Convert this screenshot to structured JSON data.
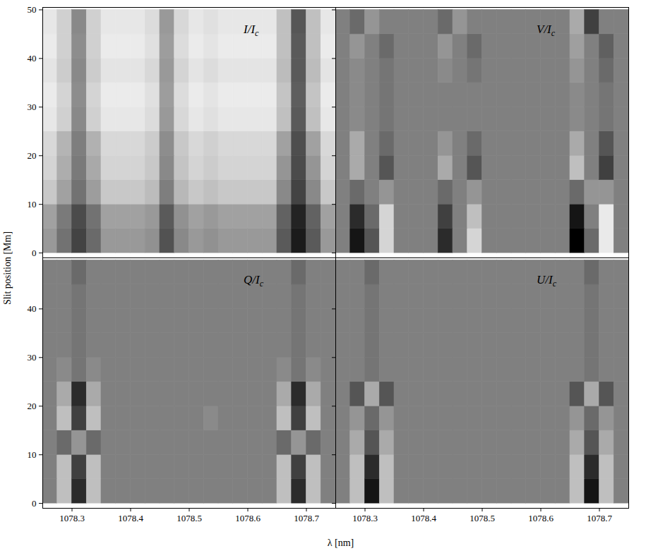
{
  "chart_data": {
    "type": "heatmap",
    "xlabel": "λ  [nm]",
    "ylabel": "Slit position [Mm]",
    "xlim": [
      1078.25,
      1078.75
    ],
    "ylim": [
      -1,
      50.5
    ],
    "xticks": [
      1078.3,
      1078.4,
      1078.5,
      1078.6,
      1078.7
    ],
    "x_bins": [
      1078.25,
      1078.275,
      1078.3,
      1078.325,
      1078.35,
      1078.375,
      1078.4,
      1078.425,
      1078.45,
      1078.475,
      1078.5,
      1078.525,
      1078.55,
      1078.575,
      1078.6,
      1078.625,
      1078.65,
      1078.675,
      1078.7,
      1078.725,
      1078.75
    ],
    "y_bins": [
      0,
      5,
      10,
      15,
      20,
      25,
      30,
      35,
      40,
      45,
      50
    ],
    "panels": [
      {
        "title": "I/Ic",
        "zlim": [
          0.35,
          1.0
        ],
        "yticks": [
          0,
          10,
          20,
          30,
          40,
          50
        ],
        "cells": [
          [
            0.74,
            0.64,
            0.52,
            0.62,
            0.74,
            0.74,
            0.74,
            0.72,
            0.56,
            0.7,
            0.74,
            0.72,
            0.74,
            0.74,
            0.74,
            0.74,
            0.58,
            0.42,
            0.58,
            0.74
          ],
          [
            0.76,
            0.66,
            0.54,
            0.64,
            0.76,
            0.76,
            0.76,
            0.74,
            0.58,
            0.72,
            0.76,
            0.74,
            0.76,
            0.76,
            0.76,
            0.76,
            0.6,
            0.44,
            0.6,
            0.76
          ],
          [
            0.86,
            0.76,
            0.64,
            0.75,
            0.86,
            0.86,
            0.86,
            0.83,
            0.67,
            0.82,
            0.86,
            0.84,
            0.86,
            0.86,
            0.86,
            0.86,
            0.7,
            0.52,
            0.7,
            0.86
          ],
          [
            0.89,
            0.79,
            0.66,
            0.78,
            0.89,
            0.89,
            0.89,
            0.86,
            0.7,
            0.85,
            0.89,
            0.87,
            0.89,
            0.89,
            0.89,
            0.89,
            0.73,
            0.54,
            0.73,
            0.89
          ],
          [
            0.9,
            0.81,
            0.67,
            0.8,
            0.9,
            0.9,
            0.9,
            0.87,
            0.71,
            0.86,
            0.9,
            0.88,
            0.9,
            0.9,
            0.9,
            0.9,
            0.76,
            0.55,
            0.76,
            0.9
          ],
          [
            0.94,
            0.88,
            0.7,
            0.88,
            0.94,
            0.94,
            0.94,
            0.91,
            0.74,
            0.9,
            0.94,
            0.92,
            0.94,
            0.94,
            0.94,
            0.94,
            0.84,
            0.58,
            0.84,
            0.94
          ],
          [
            0.95,
            0.89,
            0.71,
            0.89,
            0.95,
            0.95,
            0.95,
            0.92,
            0.75,
            0.91,
            0.95,
            0.93,
            0.95,
            0.95,
            0.95,
            0.95,
            0.85,
            0.59,
            0.85,
            0.95
          ],
          [
            0.93,
            0.87,
            0.7,
            0.87,
            0.93,
            0.93,
            0.93,
            0.9,
            0.74,
            0.89,
            0.93,
            0.91,
            0.93,
            0.93,
            0.93,
            0.93,
            0.83,
            0.58,
            0.83,
            0.93
          ],
          [
            0.95,
            0.88,
            0.71,
            0.88,
            0.95,
            0.95,
            0.95,
            0.92,
            0.75,
            0.91,
            0.95,
            0.93,
            0.95,
            0.95,
            0.95,
            0.95,
            0.84,
            0.58,
            0.84,
            0.95
          ],
          [
            0.94,
            0.88,
            0.7,
            0.88,
            0.94,
            0.94,
            0.94,
            0.91,
            0.74,
            0.9,
            0.94,
            0.92,
            0.94,
            0.94,
            0.94,
            0.94,
            0.84,
            0.57,
            0.84,
            0.94
          ]
        ]
      },
      {
        "title": "V/Ic",
        "zlim": [
          -0.06,
          0.06
        ],
        "yticks": [
          0,
          10,
          20,
          30,
          40,
          50
        ],
        "cells": [
          [
            0,
            -0.05,
            -0.02,
            0.04,
            0,
            0,
            0,
            -0.04,
            0,
            0.04,
            0,
            0,
            0,
            0,
            0,
            0,
            -0.06,
            -0.01,
            0.05,
            0
          ],
          [
            0,
            -0.04,
            -0.01,
            0.04,
            0,
            0,
            0,
            -0.03,
            0,
            0.03,
            0,
            0,
            0,
            0,
            0,
            0,
            -0.05,
            0,
            0.05,
            0
          ],
          [
            0,
            -0.01,
            0,
            0.01,
            0,
            0,
            0,
            -0.01,
            0,
            0.01,
            0,
            0,
            0,
            0,
            0,
            0,
            -0.01,
            0.01,
            0.01,
            0
          ],
          [
            0,
            0.02,
            0,
            -0.02,
            0,
            0,
            0,
            0.02,
            0,
            -0.02,
            0,
            0,
            0,
            0,
            0,
            0,
            0.03,
            0,
            -0.03,
            0
          ],
          [
            0,
            0.02,
            0,
            -0.01,
            0,
            0,
            0,
            0.01,
            0,
            -0.01,
            0,
            0,
            0,
            0,
            0,
            0,
            0.02,
            0,
            -0.02,
            0
          ],
          [
            0,
            0.005,
            0,
            -0.005,
            0,
            0,
            0,
            0,
            0,
            0,
            0,
            0,
            0,
            0,
            0,
            0,
            0.005,
            0,
            -0.005,
            0
          ],
          [
            0,
            0.005,
            0,
            -0.005,
            0,
            0,
            0,
            0,
            0,
            0,
            0,
            0,
            0,
            0,
            0,
            0,
            0.005,
            0,
            -0.005,
            0
          ],
          [
            0,
            0.005,
            0,
            -0.005,
            0,
            0,
            0,
            0.005,
            0,
            -0.005,
            0,
            0,
            0,
            0,
            0,
            0,
            0.01,
            0,
            -0.01,
            0
          ],
          [
            0,
            0.01,
            0,
            -0.01,
            0,
            0,
            0,
            0.01,
            0,
            -0.01,
            0,
            0,
            0,
            0,
            0,
            0,
            0.015,
            0,
            -0.015,
            0
          ],
          [
            0,
            -0.01,
            0.01,
            0,
            0,
            0,
            0,
            -0.01,
            0.01,
            0,
            0,
            0,
            0,
            0,
            0,
            0,
            0.02,
            -0.03,
            0,
            0
          ]
        ]
      },
      {
        "title": "Q/Ic",
        "zlim": [
          -0.06,
          0.06
        ],
        "yticks": [
          0,
          10,
          20,
          30,
          40
        ],
        "cells": [
          [
            0,
            0.03,
            -0.04,
            0.03,
            0,
            0,
            0,
            0,
            0,
            0,
            0,
            0,
            0,
            0,
            0,
            0,
            0.03,
            -0.04,
            0.03,
            0
          ],
          [
            0,
            0.03,
            -0.03,
            0.03,
            0,
            0,
            0,
            0,
            0,
            0,
            0,
            0,
            0,
            0,
            0,
            0,
            0.03,
            -0.03,
            0.03,
            0
          ],
          [
            0,
            -0.01,
            0.01,
            -0.01,
            0,
            0,
            0,
            0,
            0,
            0,
            0,
            0,
            0,
            0,
            0,
            0,
            -0.01,
            0.01,
            -0.01,
            0
          ],
          [
            0,
            0.03,
            -0.03,
            0.03,
            0,
            0,
            0,
            0,
            0,
            0,
            0,
            0.005,
            0,
            0,
            0,
            0,
            0.03,
            -0.03,
            0.03,
            0
          ],
          [
            0,
            0.02,
            -0.04,
            0.02,
            0,
            0,
            0,
            0,
            0,
            0,
            0,
            0,
            0,
            0,
            0,
            0,
            0.02,
            -0.04,
            0.02,
            0
          ],
          [
            0,
            0.005,
            -0.005,
            0.005,
            0,
            0,
            0,
            0,
            0,
            0,
            0,
            0,
            0,
            0,
            0,
            0,
            0.005,
            -0.005,
            0.005,
            0
          ],
          [
            0,
            0,
            -0.005,
            0,
            0,
            0,
            0,
            0,
            0,
            0,
            0,
            0,
            0,
            0,
            0,
            0,
            0,
            -0.005,
            0,
            0
          ],
          [
            0,
            0,
            -0.005,
            0,
            0,
            0,
            0,
            0,
            0,
            0,
            0,
            0,
            0,
            0,
            0,
            0,
            0,
            -0.005,
            0,
            0
          ],
          [
            0,
            0,
            -0.005,
            0,
            0,
            0,
            0,
            0,
            0,
            0,
            0,
            0,
            0,
            0,
            0,
            0,
            0,
            -0.005,
            0,
            0
          ],
          [
            0,
            0,
            -0.01,
            0,
            0,
            0,
            0,
            0,
            0,
            0,
            0,
            0,
            0,
            0,
            0,
            0,
            0,
            -0.01,
            0,
            0
          ]
        ]
      },
      {
        "title": "U/Ic",
        "zlim": [
          -0.06,
          0.06
        ],
        "yticks": [
          0,
          10,
          20,
          30,
          40
        ],
        "cells": [
          [
            0,
            0.03,
            -0.05,
            0.03,
            0,
            0,
            0,
            0,
            0,
            0,
            0,
            0,
            0,
            0,
            0,
            0,
            0.03,
            -0.05,
            0.03,
            0
          ],
          [
            0,
            0.03,
            -0.04,
            0.03,
            0,
            0,
            0,
            0,
            0,
            0,
            0,
            0,
            0,
            0,
            0,
            0,
            0.03,
            -0.04,
            0.03,
            0
          ],
          [
            0,
            0.02,
            -0.02,
            0.02,
            0,
            0,
            0,
            0,
            0,
            0,
            0,
            0,
            0,
            0,
            0,
            0,
            0.02,
            -0.02,
            0.02,
            0
          ],
          [
            0,
            0.01,
            -0.01,
            0.01,
            0,
            0,
            0,
            0,
            0,
            0,
            0,
            0,
            0,
            0,
            0,
            0,
            0.01,
            -0.01,
            0.01,
            0
          ],
          [
            0,
            -0.02,
            0.02,
            -0.02,
            0,
            0,
            0,
            0,
            0,
            0,
            0,
            0,
            0,
            0,
            0,
            0,
            -0.02,
            0.02,
            -0.02,
            0
          ],
          [
            0,
            0,
            -0.005,
            0,
            0,
            0,
            0,
            0,
            0,
            0,
            0,
            0,
            0,
            0,
            0,
            0,
            0,
            -0.005,
            0,
            0
          ],
          [
            0,
            0,
            -0.005,
            0,
            0,
            0,
            0,
            0,
            0,
            0,
            0,
            0,
            0,
            0,
            0,
            0,
            0,
            -0.005,
            0,
            0
          ],
          [
            0,
            0,
            -0.005,
            0,
            0,
            0,
            0,
            0,
            0,
            0,
            0,
            0,
            0,
            0,
            0,
            0,
            0,
            -0.005,
            0,
            0
          ],
          [
            0,
            0,
            -0.005,
            0,
            0,
            0,
            0,
            0,
            0,
            0,
            0,
            0,
            0,
            0,
            0,
            0,
            0,
            -0.005,
            0,
            0
          ],
          [
            0,
            0,
            -0.01,
            0,
            0,
            0,
            0,
            0,
            0,
            0,
            0,
            0,
            0,
            0,
            0,
            0,
            0,
            -0.01,
            0,
            0
          ]
        ]
      }
    ]
  }
}
